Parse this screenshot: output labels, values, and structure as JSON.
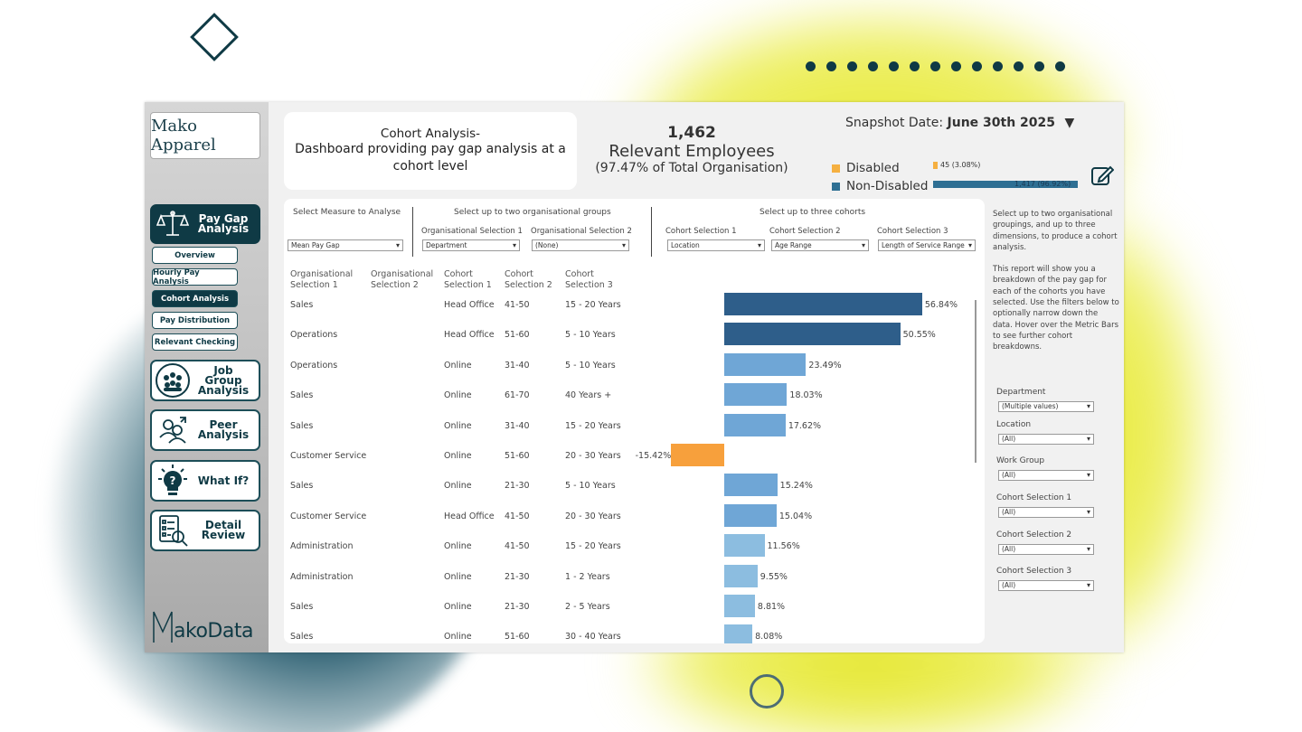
{
  "sidebar": {
    "logo_text": "Mako Apparel",
    "nav_big": [
      {
        "label": "Pay Gap Analysis",
        "icon": "scales-icon",
        "active": true
      },
      {
        "label": "Job Group Analysis",
        "icon": "group-icon",
        "active": false
      },
      {
        "label": "Peer Analysis",
        "icon": "peer-icon",
        "active": false
      },
      {
        "label": "What If?",
        "icon": "lightbulb-question-icon",
        "active": false
      },
      {
        "label": "Detail Review",
        "icon": "checklist-search-icon",
        "active": false
      }
    ],
    "nav_sub": [
      {
        "label": "Overview",
        "active": false
      },
      {
        "label": "Hourly Pay Analysis",
        "active": false
      },
      {
        "label": "Cohort Analysis",
        "active": true
      },
      {
        "label": "Pay Distribution",
        "active": false
      },
      {
        "label": "Relevant Checking",
        "active": false
      }
    ],
    "brand_footer": "akoData"
  },
  "header": {
    "title": "Cohort Analysis-",
    "subtitle": "Dashboard providing pay gap analysis at a cohort level",
    "employees_count": "1,462",
    "employees_label": "Relevant Employees",
    "employees_pct": "(97.47% of Total Organisation)",
    "snapshot_label": "Snapshot Date: ",
    "snapshot_value": "June 30th 2025",
    "snapshot_arrow": "▼"
  },
  "legend": {
    "disabled_label": "Disabled",
    "disabled_value": "45 (3.08%)",
    "disabled_fraction": 0.0308,
    "disabled_color": "#f5b041",
    "nondisabled_label": "Non-Disabled",
    "nondisabled_value": "1,417 (96.92%)",
    "nondisabled_fraction": 0.9692,
    "nondisabled_color": "#2e6f93"
  },
  "controls": {
    "measure_heading": "Select Measure to Analyse",
    "measure_value": "Mean Pay Gap",
    "org_heading": "Select up to two organisational groups",
    "org1_label": "Organisational Selection 1",
    "org1_value": "Department",
    "org2_label": "Organisational Selection 2",
    "org2_value": "(None)",
    "cohort_heading": "Select up to three cohorts",
    "cohort1_label": "Cohort Selection 1",
    "cohort1_value": "Location",
    "cohort2_label": "Cohort Selection 2",
    "cohort2_value": "Age Range",
    "cohort3_label": "Cohort Selection 3",
    "cohort3_value": "Length of Service Range"
  },
  "table": {
    "headers": [
      "Organisational Selection 1",
      "Organisational Selection 2",
      "Cohort Selection 1",
      "Cohort Selection 2",
      "Cohort Selection 3"
    ],
    "rows": [
      {
        "org1": "Sales",
        "org2": "",
        "c1": "Head Office",
        "c2": "41-50",
        "c3": "15 - 20 Years",
        "value": 56.84,
        "label": "56.84%"
      },
      {
        "org1": "Operations",
        "org2": "",
        "c1": "Head Office",
        "c2": "51-60",
        "c3": "5 - 10 Years",
        "value": 50.55,
        "label": "50.55%"
      },
      {
        "org1": "Operations",
        "org2": "",
        "c1": "Online",
        "c2": "31-40",
        "c3": "5 - 10 Years",
        "value": 23.49,
        "label": "23.49%"
      },
      {
        "org1": "Sales",
        "org2": "",
        "c1": "Online",
        "c2": "61-70",
        "c3": "40 Years +",
        "value": 18.03,
        "label": "18.03%"
      },
      {
        "org1": "Sales",
        "org2": "",
        "c1": "Online",
        "c2": "31-40",
        "c3": "15 - 20 Years",
        "value": 17.62,
        "label": "17.62%"
      },
      {
        "org1": "Customer Service",
        "org2": "",
        "c1": "Online",
        "c2": "51-60",
        "c3": "20 - 30 Years",
        "value": -15.42,
        "label": "-15.42%"
      },
      {
        "org1": "Sales",
        "org2": "",
        "c1": "Online",
        "c2": "21-30",
        "c3": "5 - 10 Years",
        "value": 15.24,
        "label": "15.24%"
      },
      {
        "org1": "Customer Service",
        "org2": "",
        "c1": "Head Office",
        "c2": "41-50",
        "c3": "20 - 30 Years",
        "value": 15.04,
        "label": "15.04%"
      },
      {
        "org1": "Administration",
        "org2": "",
        "c1": "Online",
        "c2": "41-50",
        "c3": "15 - 20 Years",
        "value": 11.56,
        "label": "11.56%"
      },
      {
        "org1": "Administration",
        "org2": "",
        "c1": "Online",
        "c2": "21-30",
        "c3": "1 - 2 Years",
        "value": 9.55,
        "label": "9.55%"
      },
      {
        "org1": "Sales",
        "org2": "",
        "c1": "Online",
        "c2": "21-30",
        "c3": "2 - 5 Years",
        "value": 8.81,
        "label": "8.81%"
      },
      {
        "org1": "Sales",
        "org2": "",
        "c1": "Online",
        "c2": "51-60",
        "c3": "30 - 40 Years",
        "value": 8.08,
        "label": "8.08%"
      }
    ],
    "colors": {
      "high": "#2e5e8a",
      "mid": "#6fa6d6",
      "low": "#8cbde0",
      "negative": "#f7a03c"
    }
  },
  "side_panel": {
    "note_1": "Select up to two organisational groupings, and up to three dimensions, to produce a cohort analysis.",
    "note_2": "This report will show you a breakdown of the pay gap for each of the cohorts you have selected.  Use the filters below to optionally narrow down the data. Hover over the Metric Bars to see further cohort breakdowns.",
    "filters": [
      {
        "label": "Department",
        "value": "(Multiple values)"
      },
      {
        "label": "Location",
        "value": "(All)"
      },
      {
        "label": "Work Group",
        "value": "(All)"
      },
      {
        "label": "Cohort Selection 1",
        "value": "(All)"
      },
      {
        "label": "Cohort Selection 2",
        "value": "(All)"
      },
      {
        "label": "Cohort Selection 3",
        "value": "(All)"
      }
    ]
  }
}
